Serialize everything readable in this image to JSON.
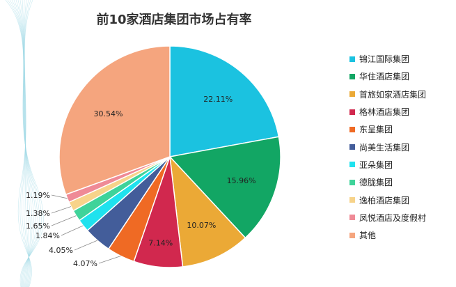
{
  "chart_data": {
    "type": "pie",
    "title": "前10家酒店集团市场占有率",
    "start_angle_deg": 0,
    "direction": "clockwise",
    "legend_position": "right",
    "slices": [
      {
        "label": "锦江国际集团",
        "value": 22.11,
        "display": "22.11%",
        "color": "#1BC2E0"
      },
      {
        "label": "华住酒店集团",
        "value": 15.96,
        "display": "15.96%",
        "color": "#12A664"
      },
      {
        "label": "首旅如家酒店集团",
        "value": 10.07,
        "display": "10.07%",
        "color": "#EBA936"
      },
      {
        "label": "格林酒店集团",
        "value": 7.14,
        "display": "7.14%",
        "color": "#D1284E"
      },
      {
        "label": "东呈集团",
        "value": 4.07,
        "display": "4.07%",
        "color": "#EF6A24"
      },
      {
        "label": "尚美生活集团",
        "value": 4.05,
        "display": "4.05%",
        "color": "#435D9A"
      },
      {
        "label": "亚朵集团",
        "value": 1.84,
        "display": "1.84%",
        "color": "#1FE2EE"
      },
      {
        "label": "德胧集团",
        "value": 1.65,
        "display": "1.65%",
        "color": "#3FD39A"
      },
      {
        "label": "逸柏酒店集团",
        "value": 1.38,
        "display": "1.38%",
        "color": "#F7D38A"
      },
      {
        "label": "凤悦酒店及度假村",
        "value": 1.19,
        "display": "1.19%",
        "color": "#EF8A96"
      },
      {
        "label": "其他",
        "value": 30.54,
        "display": "30.54%",
        "color": "#F5A57E"
      }
    ]
  }
}
